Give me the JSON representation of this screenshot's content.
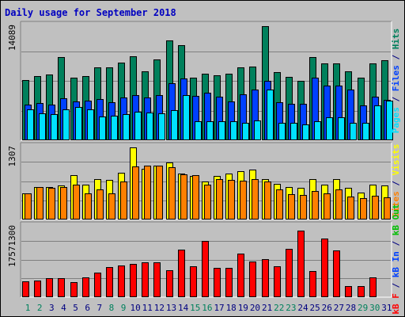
{
  "chart_data": {
    "type": "bar",
    "title": "Daily usage for September 2018",
    "categories": [
      "1",
      "2",
      "3",
      "4",
      "5",
      "6",
      "7",
      "8",
      "9",
      "10",
      "11",
      "12",
      "13",
      "14",
      "15",
      "16",
      "17",
      "18",
      "19",
      "20",
      "21",
      "22",
      "23",
      "24",
      "25",
      "26",
      "27",
      "28",
      "29",
      "30",
      "31"
    ],
    "weekend_days": [
      "1",
      "2",
      "8",
      "9",
      "15",
      "16",
      "22",
      "23",
      "29",
      "30"
    ],
    "panels": [
      {
        "id": "top",
        "max_label": "14089",
        "axis_max": 14089,
        "series": [
          {
            "name": "Hits",
            "color": "#00805c",
            "values": [
              7300,
              7800,
              8000,
              10100,
              7600,
              7800,
              8900,
              8900,
              9500,
              10200,
              8400,
              9800,
              12200,
              11600,
              7600,
              8100,
              7900,
              8100,
              8900,
              9000,
              13900,
              8300,
              7700,
              7200,
              10100,
              9400,
              9400,
              8400,
              7600,
              9400,
              9700
            ]
          },
          {
            "name": "Files",
            "color": "#0040ff",
            "values": [
              4300,
              4500,
              4300,
              5100,
              4700,
              4800,
              5000,
              4600,
              5200,
              5500,
              5200,
              5500,
              6900,
              7500,
              5400,
              5800,
              5300,
              4700,
              5600,
              6200,
              7200,
              4600,
              4400,
              4400,
              7600,
              6700,
              6700,
              6200,
              4200,
              5300,
              4900
            ]
          },
          {
            "name": "Pages",
            "color": "#00e0ff",
            "values": [
              3800,
              3300,
              3200,
              3800,
              4100,
              3800,
              2900,
              3000,
              3200,
              3500,
              3400,
              3300,
              3700,
              5500,
              2300,
              2300,
              2300,
              2300,
              2100,
              2400,
              6200,
              2100,
              2100,
              1900,
              2300,
              2800,
              2800,
              2100,
              2100,
              4200,
              4800
            ]
          }
        ]
      },
      {
        "id": "middle",
        "max_label": "1307",
        "axis_max": 1307,
        "series": [
          {
            "name": "Visits",
            "color": "#ffff00",
            "values": [
              460,
              580,
              580,
              600,
              790,
              620,
              710,
              700,
              830,
              1280,
              900,
              960,
              1010,
              820,
              770,
              670,
              770,
              810,
              860,
              880,
              720,
              630,
              570,
              560,
              720,
              620,
              710,
              560,
              480,
              620,
              600
            ]
          },
          {
            "name": "Sites",
            "color": "#ff8000",
            "values": [
              460,
              580,
              560,
              570,
              620,
              470,
              530,
              470,
              680,
              940,
              960,
              950,
              930,
              800,
              780,
              620,
              710,
              700,
              690,
              720,
              680,
              540,
              450,
              440,
              510,
              460,
              540,
              410,
              380,
              420,
              400
            ]
          }
        ]
      },
      {
        "id": "bottom",
        "max_label": "17571300",
        "axis_max": 17571300,
        "series": [
          {
            "name": "KBytes F",
            "color": "#ff0000",
            "values": [
              3800000,
              4000000,
              4600000,
              4600000,
              3600000,
              4800000,
              5900000,
              7300000,
              7800000,
              8200000,
              8500000,
              8500000,
              6500000,
              11600000,
              7600000,
              13800000,
              7200000,
              7200000,
              10600000,
              8700000,
              9200000,
              7600000,
              11700000,
              16300000,
              6300000,
              14300000,
              11400000,
              2700000,
              2700000,
              4800000,
              0
            ]
          }
        ]
      }
    ],
    "side_labels": {
      "top": [
        {
          "text": "Pages",
          "color": "#00e0ff"
        },
        {
          "text": " / ",
          "color": "#000080"
        },
        {
          "text": "Files",
          "color": "#0040ff"
        },
        {
          "text": " / ",
          "color": "#000080"
        },
        {
          "text": "Hits",
          "color": "#00805c"
        }
      ],
      "middle": [
        {
          "text": "Sites",
          "color": "#ff8000"
        },
        {
          "text": " / ",
          "color": "#000080"
        },
        {
          "text": "Visits",
          "color": "#ffff00"
        }
      ],
      "bottom": [
        {
          "text": "kB F",
          "color": "#ff0000"
        },
        {
          "text": " / ",
          "color": "#000080"
        },
        {
          "text": "kB In",
          "color": "#0040ff"
        },
        {
          "text": " / ",
          "color": "#000080"
        },
        {
          "text": "kB Out",
          "color": "#00c000"
        }
      ]
    },
    "colors": {
      "background": "#c0c0c0",
      "plot_background": "#c0c0c0",
      "title": "#0000c0",
      "weekday_label": "#000080",
      "weekend_label": "#00805c",
      "grid": "#808080"
    },
    "grid": true
  }
}
